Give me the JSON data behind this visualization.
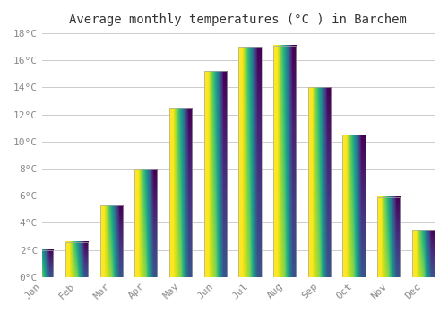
{
  "months": [
    "Jan",
    "Feb",
    "Mar",
    "Apr",
    "May",
    "Jun",
    "Jul",
    "Aug",
    "Sep",
    "Oct",
    "Nov",
    "Dec"
  ],
  "temperatures": [
    2.0,
    2.6,
    5.3,
    8.0,
    12.5,
    15.2,
    17.0,
    17.1,
    14.0,
    10.5,
    5.9,
    3.5
  ],
  "bar_color_bottom": "#FFD55A",
  "bar_color_top": "#FFA020",
  "bar_edge_color": "#AAAAAA",
  "title": "Average monthly temperatures (°C ) in Barchem",
  "ylim": [
    0,
    18
  ],
  "ytick_step": 2,
  "background_color": "#ffffff",
  "grid_color": "#cccccc",
  "title_fontsize": 10,
  "tick_fontsize": 8,
  "tick_color": "#888888",
  "bar_width": 0.65
}
